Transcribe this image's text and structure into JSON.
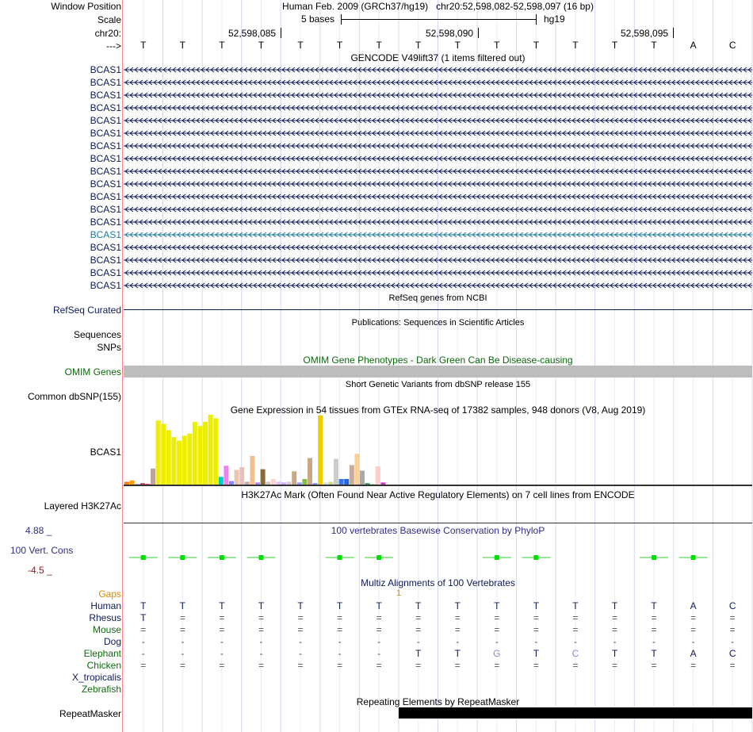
{
  "header": {
    "window_position_label": "Window Position",
    "window_position_value": "Human Feb. 2009 (GRCh37/hg19)   chr20:52,598,082-52,598,097 (16 bp)",
    "scale_label": "Scale",
    "scale_text": "5 bases",
    "scale_assembly": "hg19",
    "chrom_label": "chr20:",
    "strand_label": "--->",
    "coords": [
      "52,598,085",
      "52,598,090",
      "52,598,095"
    ]
  },
  "ref_bases": [
    "T",
    "T",
    "T",
    "T",
    "T",
    "T",
    "T",
    "T",
    "T",
    "T",
    "T",
    "T",
    "T",
    "T",
    "A",
    "C"
  ],
  "gencode": {
    "title": "GENCODE V49lift37 (1 items filtered out)",
    "gene_labels": [
      "BCAS1",
      "BCAS1",
      "BCAS1",
      "BCAS1",
      "BCAS1",
      "BCAS1",
      "BCAS1",
      "BCAS1",
      "BCAS1",
      "BCAS1",
      "BCAS1",
      "BCAS1",
      "BCAS1",
      "BCAS1",
      "BCAS1",
      "BCAS1",
      "BCAS1",
      "BCAS1"
    ],
    "highlight_index": 13,
    "color": "#0e1a5a",
    "highlight_color": "#1a7a9e"
  },
  "refseq": {
    "title": "RefSeq genes from NCBI",
    "label": "RefSeq Curated"
  },
  "publications": {
    "title": "Publications: Sequences in Scientific Articles",
    "label1": "Sequences",
    "label2": "SNPs"
  },
  "omim": {
    "title": "OMIM Gene Phenotypes - Dark Green Can Be Disease-causing",
    "label": "OMIM Genes"
  },
  "dbsnp": {
    "title": "Short Genetic Variants from dbSNP release 155",
    "label": "Common dbSNP(155)"
  },
  "gtex": {
    "title": "Gene Expression in 54 tissues from GTEx RNA-seq of 17382 samples, 948 donors (V8, Aug 2019)",
    "label": "BCAS1",
    "bars": [
      {
        "v": 4,
        "c": "#ff7f00"
      },
      {
        "v": 6,
        "c": "#ff9f00"
      },
      {
        "v": 1,
        "c": "#aaaaff"
      },
      {
        "v": 2,
        "c": "#cc3344"
      },
      {
        "v": 1,
        "c": "#ff4488"
      },
      {
        "v": 23,
        "c": "#c0a0a0"
      },
      {
        "v": 92,
        "c": "#eeee00"
      },
      {
        "v": 87,
        "c": "#eeee00"
      },
      {
        "v": 78,
        "c": "#eeee00"
      },
      {
        "v": 68,
        "c": "#eeee00"
      },
      {
        "v": 63,
        "c": "#eeee00"
      },
      {
        "v": 70,
        "c": "#eeee00"
      },
      {
        "v": 73,
        "c": "#eeee00"
      },
      {
        "v": 90,
        "c": "#eeee00"
      },
      {
        "v": 84,
        "c": "#eeee00"
      },
      {
        "v": 90,
        "c": "#eeee00"
      },
      {
        "v": 100,
        "c": "#eeee00"
      },
      {
        "v": 95,
        "c": "#eeee00"
      },
      {
        "v": 11,
        "c": "#00cccc"
      },
      {
        "v": 27,
        "c": "#ee82ee"
      },
      {
        "v": 5,
        "c": "#8888ff"
      },
      {
        "v": 21,
        "c": "#e6c8b0"
      },
      {
        "v": 25,
        "c": "#e8c0c0"
      },
      {
        "v": 4,
        "c": "#ccaaaa"
      },
      {
        "v": 41,
        "c": "#f4c090"
      },
      {
        "v": 3,
        "c": "#aa88ff"
      },
      {
        "v": 22,
        "c": "#8b6a3a"
      },
      {
        "v": 4,
        "c": "#cccccc"
      },
      {
        "v": 8,
        "c": "#ffd0d0"
      },
      {
        "v": 4,
        "c": "#e0c0f0"
      },
      {
        "v": 3,
        "c": "#ccaaff"
      },
      {
        "v": 4,
        "c": "#ddcccc"
      },
      {
        "v": 19,
        "c": "#c8a888"
      },
      {
        "v": 3,
        "c": "#9999ff"
      },
      {
        "v": 8,
        "c": "#88bb44"
      },
      {
        "v": 38,
        "c": "#c8a888"
      },
      {
        "v": 2,
        "c": "#8888ff"
      },
      {
        "v": 99,
        "c": "#eecc00"
      },
      {
        "v": 3,
        "c": "#dddddd"
      },
      {
        "v": 4,
        "c": "#ccdd88"
      },
      {
        "v": 37,
        "c": "#cccccc"
      },
      {
        "v": 8,
        "c": "#3377ee"
      },
      {
        "v": 8,
        "c": "#2266dd"
      },
      {
        "v": 28,
        "c": "#ccaa99"
      },
      {
        "v": 44,
        "c": "#f8d098"
      },
      {
        "v": 20,
        "c": "#aaaaaa"
      },
      {
        "v": 2,
        "c": "#229966"
      },
      {
        "v": 1,
        "c": "#ccdd99"
      },
      {
        "v": 26,
        "c": "#ffcccc"
      },
      {
        "v": 3,
        "c": "#cc33cc"
      }
    ]
  },
  "h3k27ac": {
    "title": "H3K27Ac Mark (Often Found Near Active Regulatory Elements) on 7 cell lines from ENCODE",
    "label": "Layered H3K27Ac"
  },
  "cons": {
    "title": "100 vertebrates Basewise Conservation by PhyloP",
    "label": "100 Vert. Cons",
    "max": "4.88 _",
    "min": "-4.5 _"
  },
  "multiz": {
    "title": "Multiz Alignments of 100 Vertebrates",
    "gaps_label": "Gaps",
    "gap_marker": "1",
    "species": [
      {
        "name": "Human",
        "color": "#0e1a5a",
        "row": [
          "T",
          "T",
          "T",
          "T",
          "T",
          "T",
          "T",
          "T",
          "T",
          "T",
          "T",
          "T",
          "T",
          "T",
          "A",
          "C"
        ]
      },
      {
        "name": "Rhesus",
        "color": "#0e1a5a",
        "row": [
          "T",
          "=",
          "=",
          "=",
          "=",
          "=",
          "=",
          "=",
          "=",
          "=",
          "=",
          "=",
          "=",
          "=",
          "=",
          "="
        ]
      },
      {
        "name": "Mouse",
        "color": "#106b10",
        "row": [
          "=",
          "=",
          "=",
          "=",
          "=",
          "=",
          "=",
          "=",
          "=",
          "=",
          "=",
          "=",
          "=",
          "=",
          "=",
          "="
        ]
      },
      {
        "name": "Dog",
        "color": "#0e1a5a",
        "row": [
          "-",
          "-",
          "-",
          "-",
          "-",
          "-",
          "-",
          "-",
          "-",
          "-",
          "-",
          "-",
          "-",
          "-",
          "-",
          "-"
        ]
      },
      {
        "name": "Elephant",
        "color": "#106b10",
        "row": [
          "-",
          "-",
          "-",
          "-",
          "-",
          "-",
          "-",
          "T",
          "T",
          "G",
          "T",
          "C",
          "T",
          "T",
          "A",
          "C"
        ]
      },
      {
        "name": "Chicken",
        "color": "#106b10",
        "row": [
          "=",
          "=",
          "=",
          "=",
          "=",
          "=",
          "=",
          "=",
          "=",
          "=",
          "=",
          "=",
          "=",
          "=",
          "=",
          "="
        ]
      },
      {
        "name": "X_tropicalis",
        "color": "#0e1a5a",
        "row": []
      },
      {
        "name": "Zebrafish",
        "color": "#106b10",
        "row": []
      }
    ]
  },
  "repeatmasker": {
    "title": "Repeating Elements by RepeatMasker",
    "label": "RepeatMasker"
  }
}
